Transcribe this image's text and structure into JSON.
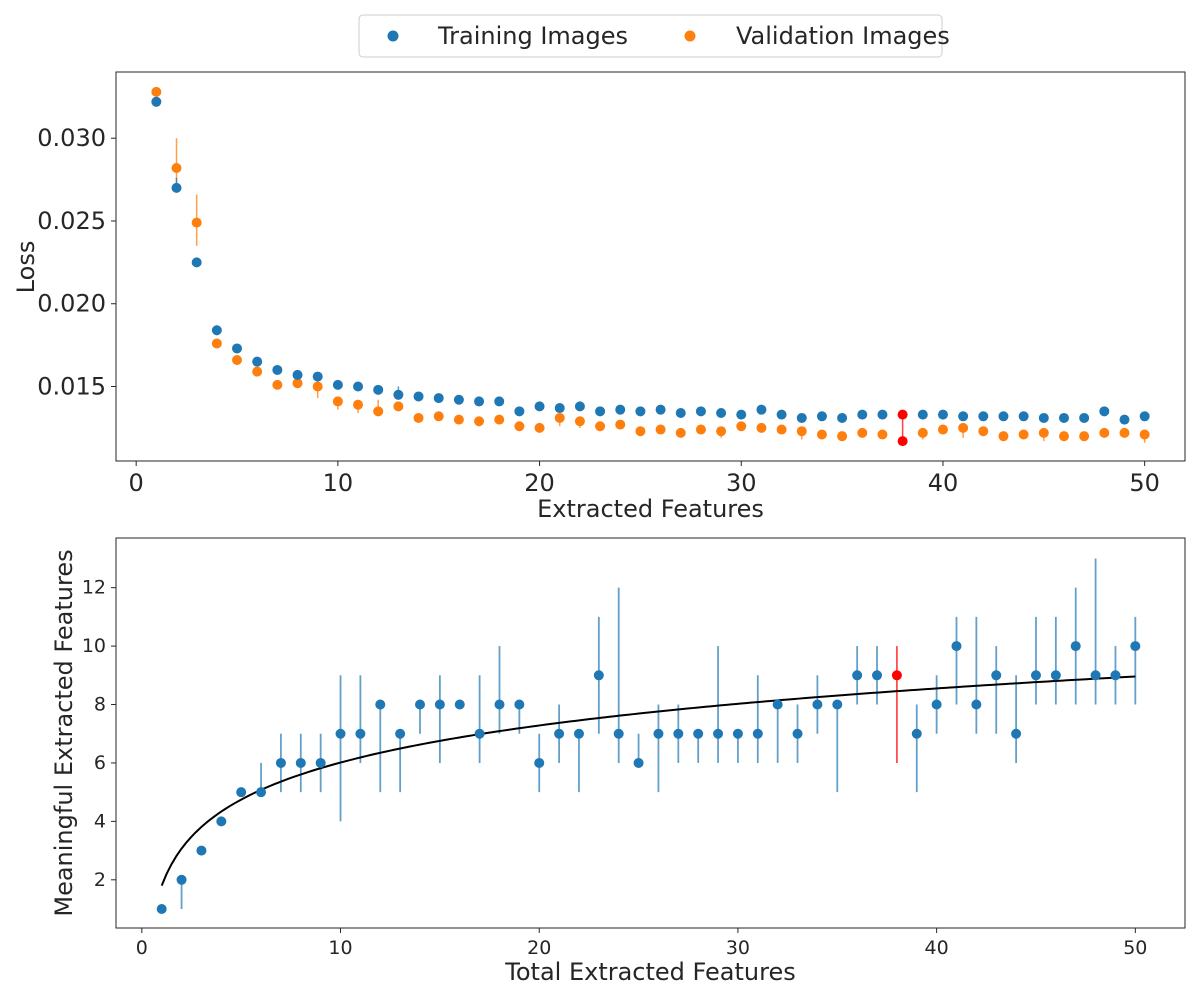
{
  "colors": {
    "train": "#1f77b4",
    "val": "#ff7f0e",
    "highlight": "#ff0000",
    "fit": "#000000",
    "axis": "#262626"
  },
  "chart_data": [
    {
      "type": "scatter",
      "xlabel": "Extracted Features",
      "ylabel": "Loss",
      "xlim": [
        -1,
        52
      ],
      "ylim": [
        0.0105,
        0.034
      ],
      "xticks": [
        0,
        10,
        20,
        30,
        40,
        50
      ],
      "yticks": [
        0.015,
        0.02,
        0.025,
        0.03
      ],
      "ytick_labels": [
        "0.015",
        "0.020",
        "0.025",
        "0.030"
      ],
      "grid": false,
      "legend": {
        "placement": "top-center, above plot",
        "entries": [
          "Training Images",
          "Validation Images"
        ]
      },
      "highlight_x": 38,
      "x": [
        1,
        2,
        3,
        4,
        5,
        6,
        7,
        8,
        9,
        10,
        11,
        12,
        13,
        14,
        15,
        16,
        17,
        18,
        19,
        20,
        21,
        22,
        23,
        24,
        25,
        26,
        27,
        28,
        29,
        30,
        31,
        32,
        33,
        34,
        35,
        36,
        37,
        38,
        39,
        40,
        41,
        42,
        43,
        44,
        45,
        46,
        47,
        48,
        49,
        50
      ],
      "series": [
        {
          "name": "Training Images",
          "values": [
            0.0322,
            0.027,
            0.0225,
            0.0184,
            0.0173,
            0.0165,
            0.016,
            0.0157,
            0.0156,
            0.0151,
            0.015,
            0.0148,
            0.0145,
            0.0144,
            0.0143,
            0.0142,
            0.0141,
            0.0141,
            0.0135,
            0.0138,
            0.0137,
            0.0138,
            0.0135,
            0.0136,
            0.0135,
            0.0136,
            0.0134,
            0.0135,
            0.0134,
            0.0133,
            0.0136,
            0.0133,
            0.0131,
            0.0132,
            0.0131,
            0.0133,
            0.0133,
            0.0133,
            0.0133,
            0.0133,
            0.0132,
            0.0132,
            0.0132,
            0.0132,
            0.0131,
            0.0131,
            0.0131,
            0.0135,
            0.013,
            0.0132
          ],
          "err_low": [
            0.0003,
            0.0002,
            0.0002,
            0.0003,
            0.0002,
            0.0002,
            0.0002,
            0.0002,
            0.0002,
            0.0002,
            0.0002,
            0.0002,
            0.0003,
            0.0002,
            0.0002,
            0.0002,
            0.0002,
            0.0002,
            0.0002,
            0.0002,
            0.0002,
            0.0002,
            0.0002,
            0.0002,
            0.0002,
            0.0002,
            0.0002,
            0.0002,
            0.0002,
            0.0002,
            0.0002,
            0.0002,
            0.0002,
            0.0002,
            0.0002,
            0.0002,
            0.0002,
            0.0002,
            0.0002,
            0.0002,
            0.0002,
            0.0002,
            0.0002,
            0.0002,
            0.0002,
            0.0002,
            0.0002,
            0.0002,
            0.0002,
            0.0002
          ],
          "err_high": [
            0.0003,
            0.0006,
            0.0002,
            0.0003,
            0.0002,
            0.0002,
            0.0002,
            0.0002,
            0.0002,
            0.0002,
            0.0002,
            0.0002,
            0.0005,
            0.0002,
            0.0002,
            0.0002,
            0.0002,
            0.0002,
            0.0002,
            0.0002,
            0.0002,
            0.0002,
            0.0002,
            0.0002,
            0.0002,
            0.0002,
            0.0002,
            0.0002,
            0.0002,
            0.0002,
            0.0002,
            0.0002,
            0.0002,
            0.0002,
            0.0002,
            0.0002,
            0.0002,
            0.0002,
            0.0002,
            0.0002,
            0.0002,
            0.0002,
            0.0002,
            0.0002,
            0.0002,
            0.0002,
            0.0002,
            0.0002,
            0.0002,
            0.0002
          ]
        },
        {
          "name": "Validation Images",
          "values": [
            0.0328,
            0.0282,
            0.0249,
            0.0176,
            0.0166,
            0.0159,
            0.0151,
            0.0152,
            0.015,
            0.0141,
            0.0139,
            0.0135,
            0.0138,
            0.0131,
            0.0132,
            0.013,
            0.0129,
            0.013,
            0.0126,
            0.0125,
            0.0131,
            0.0129,
            0.0126,
            0.0127,
            0.0123,
            0.0124,
            0.0122,
            0.0124,
            0.0123,
            0.0126,
            0.0125,
            0.0124,
            0.0123,
            0.0121,
            0.012,
            0.0122,
            0.0121,
            0.0117,
            0.0122,
            0.0124,
            0.0125,
            0.0123,
            0.012,
            0.0121,
            0.0122,
            0.012,
            0.012,
            0.0122,
            0.0122,
            0.0121
          ],
          "err_low": [
            0.0002,
            0.001,
            0.0014,
            0.0002,
            0.0003,
            0.0002,
            0.0002,
            0.0002,
            0.0007,
            0.0005,
            0.0005,
            0.0002,
            0.0003,
            0.0002,
            0.0002,
            0.0002,
            0.0003,
            0.0002,
            0.0002,
            0.0002,
            0.0005,
            0.0004,
            0.0002,
            0.0002,
            0.0002,
            0.0002,
            0.0002,
            0.0002,
            0.0004,
            0.0002,
            0.0002,
            0.0002,
            0.0005,
            0.0003,
            0.0002,
            0.0002,
            0.0002,
            0.0002,
            0.0004,
            0.0002,
            0.0006,
            0.0003,
            0.0002,
            0.0002,
            0.0005,
            0.0003,
            0.0002,
            0.0002,
            0.0002,
            0.0005
          ],
          "err_high": [
            0.0002,
            0.0018,
            0.0017,
            0.0002,
            0.0002,
            0.0002,
            0.0002,
            0.0002,
            0.0002,
            0.0002,
            0.0003,
            0.0007,
            0.0002,
            0.0002,
            0.0002,
            0.0002,
            0.0002,
            0.0002,
            0.0002,
            0.0002,
            0.0002,
            0.0002,
            0.0002,
            0.0002,
            0.0002,
            0.0002,
            0.0002,
            0.0002,
            0.0002,
            0.0002,
            0.0002,
            0.0002,
            0.0002,
            0.0002,
            0.0002,
            0.0002,
            0.0002,
            0.0015,
            0.0002,
            0.0002,
            0.0002,
            0.0002,
            0.0002,
            0.0002,
            0.0002,
            0.0002,
            0.0002,
            0.0002,
            0.0002,
            0.0002
          ]
        }
      ]
    },
    {
      "type": "scatter",
      "xlabel": "Total Extracted Features",
      "ylabel": "Meaningful Extracted Features",
      "xlim": [
        -1.3,
        52.5
      ],
      "ylim": [
        0.35,
        13.7
      ],
      "xticks": [
        0,
        10,
        20,
        30,
        40,
        50
      ],
      "yticks": [
        2,
        4,
        6,
        8,
        10,
        12
      ],
      "grid": false,
      "highlight_x": 38,
      "fit_curve": {
        "type": "logarithmic",
        "a": 1.8,
        "b": 1.83,
        "x_range": [
          1,
          50
        ]
      },
      "x": [
        1,
        2,
        3,
        4,
        5,
        6,
        7,
        8,
        9,
        10,
        11,
        12,
        13,
        14,
        15,
        16,
        17,
        18,
        19,
        20,
        21,
        22,
        23,
        24,
        25,
        26,
        27,
        28,
        29,
        30,
        31,
        32,
        33,
        34,
        35,
        36,
        37,
        38,
        39,
        40,
        41,
        42,
        43,
        44,
        45,
        46,
        47,
        48,
        49,
        50
      ],
      "values": [
        1,
        2,
        3,
        4,
        5,
        5,
        6,
        6,
        6,
        7,
        7,
        8,
        7,
        8,
        8,
        8,
        7,
        8,
        8,
        6,
        7,
        7,
        9,
        7,
        6,
        7,
        7,
        7,
        7,
        7,
        7,
        8,
        7,
        8,
        8,
        9,
        9,
        9,
        7,
        8,
        10,
        8,
        9,
        7,
        9,
        9,
        10,
        9,
        9,
        10
      ],
      "err_low": [
        0,
        1,
        0,
        0,
        0,
        0,
        1,
        1,
        1,
        3,
        1,
        3,
        2,
        1,
        2,
        0,
        1,
        1,
        1,
        1,
        1,
        2,
        2,
        1,
        0,
        2,
        1,
        1,
        1,
        1,
        1,
        2,
        1,
        1,
        3,
        1,
        1,
        3,
        2,
        1,
        2,
        1,
        2,
        1,
        1,
        1,
        2,
        1,
        1,
        2
      ],
      "err_high": [
        0,
        0,
        0,
        0,
        0,
        1,
        1,
        1,
        1,
        2,
        2,
        0,
        0,
        0,
        1,
        0,
        2,
        2,
        0,
        1,
        1,
        0,
        2,
        5,
        1,
        1,
        1,
        0,
        3,
        0,
        2,
        0,
        1,
        1,
        0,
        1,
        1,
        1,
        1,
        1,
        1,
        3,
        1,
        2,
        2,
        2,
        2,
        4,
        1,
        1
      ]
    }
  ]
}
